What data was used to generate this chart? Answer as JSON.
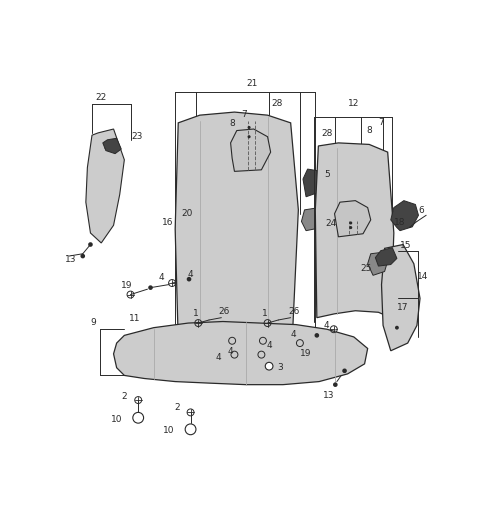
{
  "bg_color": "#ffffff",
  "line_color": "#2a2a2a",
  "fig_width": 4.8,
  "fig_height": 5.06,
  "dpi": 100,
  "xlim": [
    0,
    480
  ],
  "ylim": [
    0,
    506
  ]
}
